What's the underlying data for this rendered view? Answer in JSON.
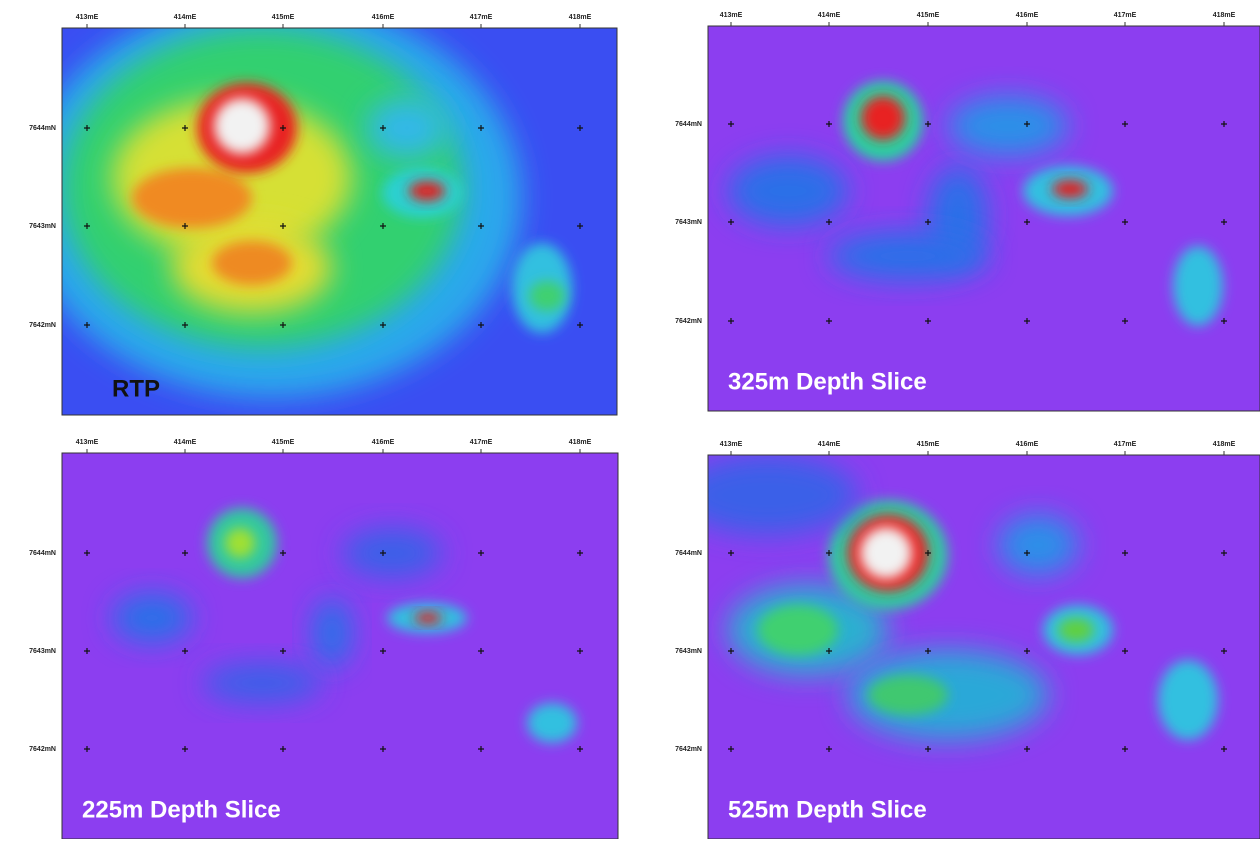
{
  "panels": [
    {
      "title": "RTP",
      "x_labels": [
        "413mE",
        "414mE",
        "415mE",
        "416mE",
        "417mE",
        "418mE"
      ],
      "y_labels": [
        "7644mN",
        "7643mN",
        "7642mN"
      ]
    },
    {
      "title": "325m Depth Slice",
      "x_labels": [
        "413mE",
        "414mE",
        "415mE",
        "416mE",
        "417mE",
        "418mE"
      ],
      "y_labels": [
        "7644mN",
        "7643mN",
        "7642mN"
      ]
    },
    {
      "title": "225m Depth Slice",
      "x_labels": [
        "413mE",
        "414mE",
        "415mE",
        "416mE",
        "417mE",
        "418mE"
      ],
      "y_labels": [
        "7644mN",
        "7643mN",
        "7642mN"
      ]
    },
    {
      "title": "525m Depth Slice",
      "x_labels": [
        "413mE",
        "414mE",
        "415mE",
        "416mE",
        "417mE",
        "418mE"
      ],
      "y_labels": [
        "7644mN",
        "7643mN",
        "7642mN"
      ]
    }
  ]
}
